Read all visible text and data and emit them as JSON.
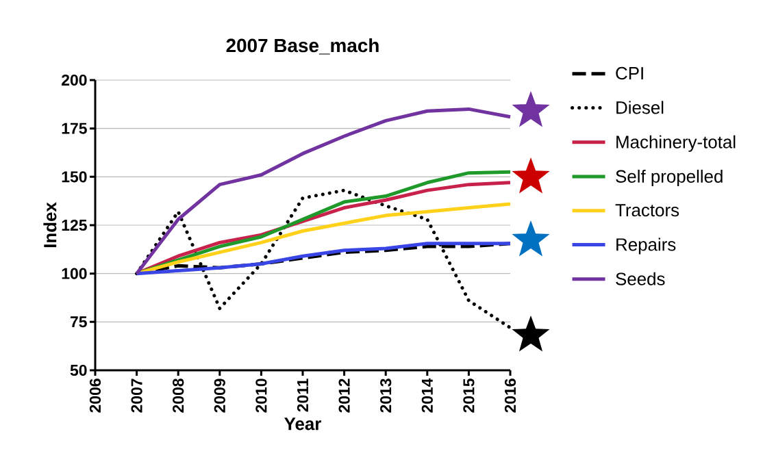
{
  "chart_data": {
    "type": "line",
    "title": "2007 Base_mach",
    "xlabel": "Year",
    "ylabel": "Index",
    "x": [
      2007,
      2008,
      2009,
      2010,
      2011,
      2012,
      2013,
      2014,
      2015,
      2016
    ],
    "xlim": [
      2006,
      2016
    ],
    "xticks": [
      2006,
      2007,
      2008,
      2009,
      2010,
      2011,
      2012,
      2013,
      2014,
      2015,
      2016
    ],
    "ylim": [
      50,
      200
    ],
    "yticks": [
      50,
      75,
      100,
      125,
      150,
      175,
      200
    ],
    "grid": "y",
    "legend": "right",
    "marker": "none",
    "series": [
      {
        "name": "CPI",
        "color": "#000000",
        "line_style": "dashed",
        "values": [
          100,
          104,
          103,
          105,
          108,
          111,
          112,
          114,
          114,
          115.5
        ]
      },
      {
        "name": "Diesel",
        "color": "#000000",
        "line_style": "dotted",
        "values": [
          100,
          132,
          82,
          105,
          139,
          143,
          135,
          128,
          86,
          72
        ]
      },
      {
        "name": "Machinery-total",
        "color": "#c8214b",
        "line_style": "solid",
        "values": [
          100,
          109,
          116,
          120,
          127,
          134,
          138,
          143,
          146,
          147
        ]
      },
      {
        "name": "Self propelled",
        "color": "#1f9a2a",
        "line_style": "solid",
        "values": [
          100,
          107,
          114,
          119,
          128,
          137,
          140,
          147,
          152,
          152.5
        ]
      },
      {
        "name": "Tractors",
        "color": "#ffd11a",
        "line_style": "solid",
        "values": [
          100,
          106,
          111,
          116,
          122,
          126,
          130,
          132,
          134,
          136
        ]
      },
      {
        "name": "Repairs",
        "color": "#3a45e6",
        "line_style": "solid",
        "values": [
          100,
          101.5,
          103,
          105,
          109,
          112,
          113,
          115.5,
          115.5,
          115.5
        ]
      },
      {
        "name": "Seeds",
        "color": "#7033a0",
        "line_style": "solid",
        "values": [
          100,
          128,
          146,
          151,
          162,
          171,
          179,
          184,
          185,
          181
        ]
      }
    ]
  }
}
